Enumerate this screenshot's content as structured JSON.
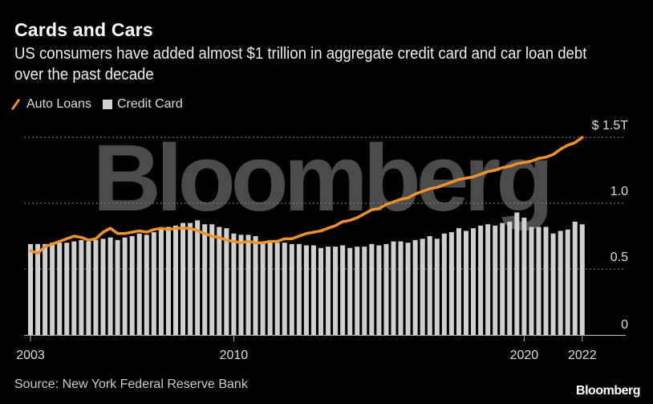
{
  "header": {
    "title": "Cards and Cars",
    "subtitle": "US consumers have added almost $1 trillion in aggregate credit card and car loan debt over the past decade"
  },
  "legend": {
    "auto": "Auto Loans",
    "card": "Credit Card"
  },
  "footer": {
    "source": "Source: New York Federal Reserve Bank",
    "brand": "Bloomberg"
  },
  "watermark": "Bloomberg",
  "colors": {
    "auto": "#f0922b",
    "card": "#d0d0d0",
    "grid": "#888888"
  },
  "chart_data": {
    "type": "bar+line",
    "title": "Cards and Cars",
    "x_start": "2003Q1",
    "frequency": "quarterly",
    "x_ticks": [
      {
        "label": "2003",
        "index": 0
      },
      {
        "label": "2010",
        "index": 28
      },
      {
        "label": "2020",
        "index": 68
      },
      {
        "label": "2022",
        "index": 76
      }
    ],
    "y_ticks": [
      {
        "label": "0",
        "value": 0
      },
      {
        "label": "0.5",
        "value": 0.5
      },
      {
        "label": "1.0",
        "value": 1.0
      },
      {
        "label": "$ 1.5T",
        "value": 1.5
      }
    ],
    "ylim": [
      0,
      1.5
    ],
    "unit": "$ trillion",
    "grid": true,
    "legend_position": "top-left",
    "series": [
      {
        "name": "Credit Card",
        "kind": "bar",
        "values": [
          0.69,
          0.69,
          0.69,
          0.7,
          0.7,
          0.7,
          0.71,
          0.72,
          0.71,
          0.72,
          0.73,
          0.74,
          0.72,
          0.74,
          0.75,
          0.77,
          0.76,
          0.78,
          0.8,
          0.82,
          0.83,
          0.85,
          0.85,
          0.87,
          0.84,
          0.84,
          0.82,
          0.81,
          0.77,
          0.76,
          0.76,
          0.75,
          0.71,
          0.71,
          0.7,
          0.7,
          0.69,
          0.69,
          0.68,
          0.68,
          0.66,
          0.67,
          0.67,
          0.68,
          0.66,
          0.67,
          0.67,
          0.69,
          0.68,
          0.69,
          0.71,
          0.71,
          0.7,
          0.72,
          0.73,
          0.75,
          0.73,
          0.77,
          0.78,
          0.81,
          0.79,
          0.81,
          0.83,
          0.84,
          0.83,
          0.85,
          0.86,
          0.93,
          0.89,
          0.82,
          0.82,
          0.82,
          0.77,
          0.79,
          0.8,
          0.86,
          0.84
        ]
      },
      {
        "name": "Auto Loans",
        "kind": "line",
        "values": [
          0.64,
          0.62,
          0.67,
          0.69,
          0.71,
          0.73,
          0.75,
          0.74,
          0.72,
          0.73,
          0.78,
          0.81,
          0.77,
          0.77,
          0.78,
          0.79,
          0.78,
          0.8,
          0.81,
          0.8,
          0.81,
          0.81,
          0.81,
          0.79,
          0.77,
          0.75,
          0.74,
          0.72,
          0.71,
          0.7,
          0.71,
          0.7,
          0.7,
          0.71,
          0.71,
          0.73,
          0.73,
          0.75,
          0.77,
          0.78,
          0.79,
          0.81,
          0.83,
          0.86,
          0.87,
          0.89,
          0.92,
          0.95,
          0.96,
          0.99,
          1.01,
          1.03,
          1.04,
          1.07,
          1.09,
          1.11,
          1.12,
          1.14,
          1.16,
          1.18,
          1.19,
          1.2,
          1.22,
          1.24,
          1.25,
          1.27,
          1.28,
          1.3,
          1.31,
          1.32,
          1.34,
          1.35,
          1.37,
          1.41,
          1.44,
          1.46,
          1.5
        ]
      }
    ]
  }
}
